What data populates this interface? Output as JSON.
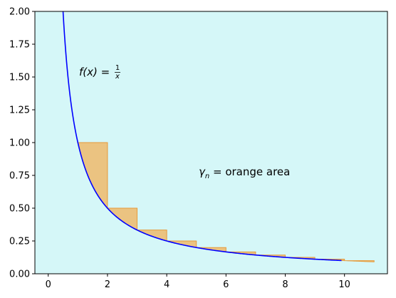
{
  "chart_data": {
    "type": "area",
    "xlim": [
      -0.45,
      11.45
    ],
    "ylim": [
      0,
      2.0
    ],
    "grid": false,
    "background_color": "#d5f7f8",
    "curve": {
      "function": "1/x",
      "x_range": [
        0.5,
        9.9
      ],
      "color": "#0000ff"
    },
    "orange_fill_color": "#f2b15a",
    "orange_edge_color": "#e69a3a",
    "bars": [
      {
        "x_start": 1,
        "x_end": 2,
        "top": 1.0,
        "bottom": 0.5
      },
      {
        "x_start": 2,
        "x_end": 3,
        "top": 0.5,
        "bottom": 0.3333
      },
      {
        "x_start": 3,
        "x_end": 4,
        "top": 0.3333,
        "bottom": 0.25
      },
      {
        "x_start": 4,
        "x_end": 5,
        "top": 0.25,
        "bottom": 0.2
      },
      {
        "x_start": 5,
        "x_end": 6,
        "top": 0.2,
        "bottom": 0.1667
      },
      {
        "x_start": 6,
        "x_end": 7,
        "top": 0.1667,
        "bottom": 0.1429
      },
      {
        "x_start": 7,
        "x_end": 8,
        "top": 0.1429,
        "bottom": 0.125
      },
      {
        "x_start": 8,
        "x_end": 9,
        "top": 0.125,
        "bottom": 0.1111
      },
      {
        "x_start": 9,
        "x_end": 10,
        "top": 0.1111,
        "bottom": 0.1
      },
      {
        "x_start": 10,
        "x_end": 11,
        "top": 0.1,
        "bottom": 0.0909
      }
    ],
    "xticks": [
      0,
      2,
      4,
      6,
      8,
      10
    ],
    "xtick_labels": [
      "0",
      "2",
      "4",
      "6",
      "8",
      "10"
    ],
    "yticks": [
      0.0,
      0.25,
      0.5,
      0.75,
      1.0,
      1.25,
      1.5,
      1.75,
      2.0
    ],
    "ytick_labels": [
      "0.00",
      "0.25",
      "0.50",
      "0.75",
      "1.00",
      "1.25",
      "1.50",
      "1.75",
      "2.00"
    ],
    "annotations": {
      "function": {
        "lhs": "f(x)",
        "eq": " = ",
        "num": "1",
        "den": "x",
        "x": 1.0,
        "y": 1.5
      },
      "gamma": {
        "symbol": "γ",
        "sub": "n",
        "rest": " = orange area",
        "x": 5.0,
        "y": 0.75
      }
    }
  }
}
